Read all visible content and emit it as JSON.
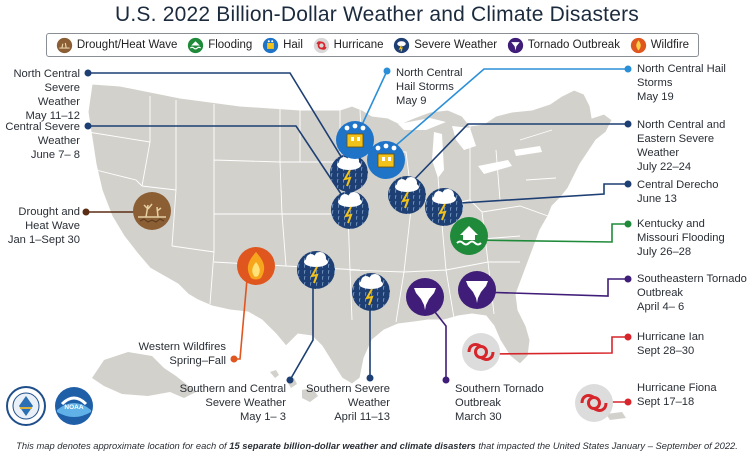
{
  "title": "U.S. 2022 Billion-Dollar Weather and Climate Disasters",
  "legend": [
    {
      "icon": "drought-icon",
      "label": "Drought/Heat Wave",
      "color": "#8b5e34"
    },
    {
      "icon": "flooding-icon",
      "label": "Flooding",
      "color": "#1f8b3a"
    },
    {
      "icon": "hail-icon",
      "label": "Hail",
      "color": "#1f74c8"
    },
    {
      "icon": "hurricane-icon",
      "label": "Hurricane",
      "color": "#d7262b"
    },
    {
      "icon": "severe-weather-icon",
      "label": "Severe Weather",
      "color": "#1d3f73"
    },
    {
      "icon": "tornado-icon",
      "label": "Tornado Outbreak",
      "color": "#3f1d78"
    },
    {
      "icon": "wildfire-icon",
      "label": "Wildfire",
      "color": "#e0561f"
    }
  ],
  "events": {
    "nc_severe": {
      "name": "North Central Severe Weather",
      "dates": "May 11–12"
    },
    "central_severe": {
      "name": "Central Severe Weather",
      "dates": "June 7– 8"
    },
    "drought": {
      "name": "Drought and Heat Wave",
      "dates": "Jan 1–Sept 30"
    },
    "nc_hail_may9": {
      "name": "North Central Hail Storms",
      "dates": "May 9"
    },
    "nc_hail_may19": {
      "name": "North Central Hail Storms",
      "dates": "May 19"
    },
    "nc_east_severe": {
      "name": "North Central and Eastern Severe Weather",
      "dates": "July 22–24"
    },
    "derecho": {
      "name": "Central Derecho",
      "dates": "June 13"
    },
    "ky_mo_flood": {
      "name": "Kentucky and Missouri Flooding",
      "dates": "July 26–28"
    },
    "se_tornado": {
      "name": "Southeastern Tornado Outbreak",
      "dates": "April 4– 6"
    },
    "ian": {
      "name": "Hurricane Ian",
      "dates": "Sept 28–30"
    },
    "fiona": {
      "name": "Hurricane Fiona",
      "dates": "Sept 17–18"
    },
    "wildfires": {
      "name": "Western Wildfires",
      "dates": "Spring–Fall"
    },
    "s_central_severe": {
      "name": "Southern and Central Severe Weather",
      "dates": "May 1– 3"
    },
    "s_severe": {
      "name": "Southern Severe Weather",
      "dates": "April 11–13"
    },
    "s_tornado": {
      "name": "Southern Tornado Outbreak",
      "dates": "March 30"
    }
  },
  "footnote": {
    "pre": "This map denotes approximate location for each of ",
    "bold": "15 separate billion-dollar weather and climate disasters",
    "post": " that impacted the United States January – September of 2022."
  },
  "logos": [
    {
      "name": "commerce-seal",
      "text": "DEPARTMENT OF COMMERCE"
    },
    {
      "name": "noaa-logo",
      "text": "NOAA"
    }
  ]
}
